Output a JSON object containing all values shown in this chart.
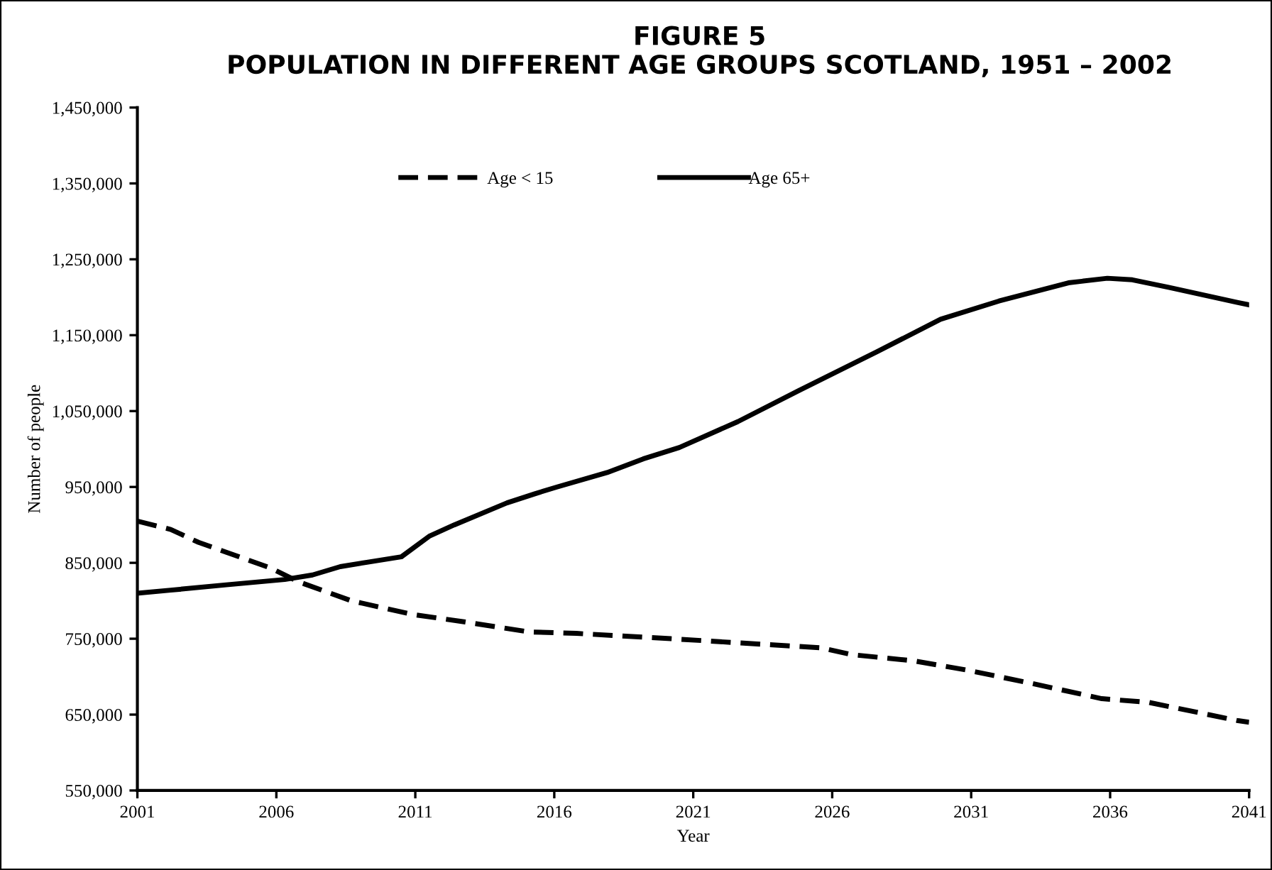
{
  "chart_data": {
    "type": "line",
    "title": "FIGURE 5\nPOPULATION IN DIFFERENT AGE GROUPS SCOTLAND, 1951 – 2002",
    "xlabel": "Year",
    "ylabel": "Number of people",
    "xlim": [
      2001,
      2041
    ],
    "xticks": [
      2001,
      2006,
      2011,
      2016,
      2021,
      2026,
      2031,
      2036,
      2041
    ],
    "ylim": [
      550000,
      1450000
    ],
    "yticks": [
      {
        "value": 550000,
        "label": "550,000"
      },
      {
        "value": 650000,
        "label": "650,000"
      },
      {
        "value": 750000,
        "label": "750,000"
      },
      {
        "value": 850000,
        "label": "850,000"
      },
      {
        "value": 950000,
        "label": "950,000"
      },
      {
        "value": 1050000,
        "label": "1,050,000"
      },
      {
        "value": 1150000,
        "label": "1,150,000"
      },
      {
        "value": 1250000,
        "label": "1,250,000"
      },
      {
        "value": 1350000,
        "label": "1,350,000"
      },
      {
        "value": 1450000,
        "label": "1,450,000"
      }
    ],
    "grid": false,
    "legend": "top",
    "marker": "none",
    "series": [
      {
        "name": "Age < 15",
        "color": "#000000",
        "line_style": "dashed",
        "x": [
          2001,
          2002.2,
          2003.2,
          2004.2,
          2005.8,
          2006.8,
          2008.7,
          2010.9,
          2012.8,
          2015.1,
          2016.8,
          2020.2,
          2025.6,
          2026.7,
          2028.9,
          2030.8,
          2033.2,
          2035.7,
          2037.4,
          2040.6,
          2041
        ],
        "values": [
          905000,
          894000,
          877000,
          864000,
          843000,
          825000,
          800000,
          782000,
          772000,
          759000,
          757000,
          750000,
          738000,
          729000,
          721000,
          709000,
          691000,
          671000,
          666000,
          642000,
          640000
        ]
      },
      {
        "name": "Age 65+",
        "color": "#000000",
        "line_style": "solid",
        "x": [
          2001,
          2002.2,
          2004.2,
          2006.3,
          2007.3,
          2008.3,
          2009.3,
          2010.5,
          2011.5,
          2012.4,
          2014.3,
          2015.3,
          2016.1,
          2017.9,
          2019.2,
          2020.5,
          2022.6,
          2024.8,
          2027.6,
          2029.9,
          2032,
          2034.5,
          2035.9,
          2036.8,
          2038.1,
          2040.6,
          2041
        ],
        "values": [
          810000,
          814000,
          821000,
          828000,
          834000,
          845000,
          851000,
          858000,
          885000,
          900000,
          929000,
          941000,
          950000,
          969000,
          987000,
          1002000,
          1036000,
          1077000,
          1128000,
          1171000,
          1195000,
          1219000,
          1225000,
          1223000,
          1213000,
          1193000,
          1190000
        ]
      }
    ]
  }
}
